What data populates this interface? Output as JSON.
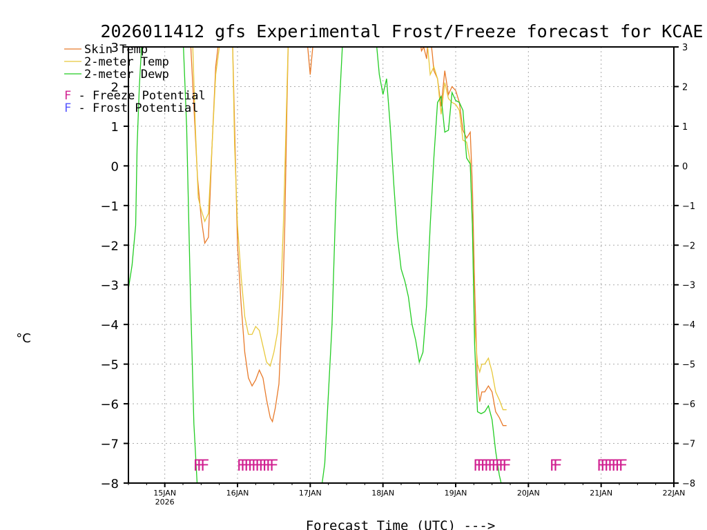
{
  "chart_data": {
    "type": "line",
    "title": "2026011412 gfs Experimental Frost/Freeze forecast for KCAE",
    "ylabel": "°C",
    "xlabel": "Forecast Time (UTC) --->",
    "ylim": [
      -8,
      3
    ],
    "xlim": [
      0,
      7.5
    ],
    "yticks": [
      -8,
      -7,
      -6,
      -5,
      -4,
      -3,
      -2,
      -1,
      0,
      1,
      2,
      3
    ],
    "yticklabels_left": [
      "−8",
      "−7",
      "−6",
      "−5",
      "−4",
      "−3",
      "−2",
      "−1",
      "0",
      "1",
      "2",
      "3"
    ],
    "yticklabels_right": [
      "−8",
      "−7",
      "−6",
      "−5",
      "−4",
      "−3",
      "−2",
      "−1",
      "0",
      "1",
      "2",
      "3"
    ],
    "xticks": [
      {
        "x": 0.5,
        "label": "15JAN",
        "sublabel": "2026"
      },
      {
        "x": 1.5,
        "label": "16JAN"
      },
      {
        "x": 2.5,
        "label": "17JAN"
      },
      {
        "x": 3.5,
        "label": "18JAN"
      },
      {
        "x": 4.5,
        "label": "19JAN"
      },
      {
        "x": 5.5,
        "label": "20JAN"
      },
      {
        "x": 6.5,
        "label": "21JAN"
      },
      {
        "x": 7.5,
        "label": "22JAN"
      }
    ],
    "grid": true,
    "legend": [
      {
        "label": "Skin Temp",
        "color": "#e87a2a"
      },
      {
        "label": "2-meter Temp",
        "color": "#e8c83a"
      },
      {
        "label": "2-meter Dewp",
        "color": "#22cc22"
      }
    ],
    "potential_legend": [
      {
        "marker": "F",
        "label": " - Freeze Potential",
        "color": "#d02090"
      },
      {
        "marker": "F",
        "label": " - Frost Potential",
        "color": "#5555ff"
      }
    ],
    "series": [
      {
        "name": "Skin Temp",
        "color": "#e87a2a",
        "points": [
          [
            0.85,
            3.3
          ],
          [
            0.9,
            1.5
          ],
          [
            0.95,
            -0.3
          ],
          [
            1.0,
            -1.3
          ],
          [
            1.05,
            -1.95
          ],
          [
            1.1,
            -1.8
          ],
          [
            1.15,
            0.5
          ],
          [
            1.2,
            2.5
          ],
          [
            1.25,
            3.3
          ],
          [
            1.43,
            3.3
          ],
          [
            1.46,
            1.0
          ],
          [
            1.5,
            -2.0
          ],
          [
            1.55,
            -3.5
          ],
          [
            1.6,
            -4.7
          ],
          [
            1.65,
            -5.35
          ],
          [
            1.7,
            -5.55
          ],
          [
            1.75,
            -5.4
          ],
          [
            1.8,
            -5.15
          ],
          [
            1.85,
            -5.35
          ],
          [
            1.9,
            -5.9
          ],
          [
            1.95,
            -6.35
          ],
          [
            1.98,
            -6.45
          ],
          [
            2.02,
            -6.1
          ],
          [
            2.07,
            -5.5
          ],
          [
            2.12,
            -3.5
          ],
          [
            2.15,
            -1.5
          ],
          [
            2.18,
            1.5
          ],
          [
            2.2,
            3.3
          ],
          [
            2.45,
            3.3
          ],
          [
            2.5,
            2.3
          ],
          [
            2.55,
            3.3
          ],
          [
            4.0,
            3.3
          ],
          [
            4.03,
            2.9
          ],
          [
            4.06,
            3.0
          ],
          [
            4.1,
            2.7
          ],
          [
            4.12,
            3.2
          ],
          [
            4.15,
            3.3
          ],
          [
            4.18,
            2.8
          ],
          [
            4.2,
            2.4
          ],
          [
            4.25,
            2.2
          ],
          [
            4.3,
            1.5
          ],
          [
            4.35,
            2.4
          ],
          [
            4.4,
            1.8
          ],
          [
            4.45,
            2.0
          ],
          [
            4.5,
            1.9
          ],
          [
            4.55,
            1.6
          ],
          [
            4.6,
            0.9
          ],
          [
            4.65,
            0.7
          ],
          [
            4.7,
            0.85
          ],
          [
            4.73,
            -0.5
          ],
          [
            4.76,
            -3.0
          ],
          [
            4.8,
            -5.5
          ],
          [
            4.83,
            -5.95
          ],
          [
            4.86,
            -5.7
          ],
          [
            4.9,
            -5.7
          ],
          [
            4.95,
            -5.55
          ],
          [
            5.0,
            -5.7
          ],
          [
            5.05,
            -6.2
          ],
          [
            5.1,
            -6.35
          ],
          [
            5.15,
            -6.55
          ],
          [
            5.2,
            -6.55
          ]
        ]
      },
      {
        "name": "2-meter Temp",
        "color": "#e8c83a",
        "points": [
          [
            0.88,
            3.3
          ],
          [
            0.92,
            1.0
          ],
          [
            0.96,
            -0.8
          ],
          [
            1.0,
            -1.1
          ],
          [
            1.05,
            -1.4
          ],
          [
            1.1,
            -1.2
          ],
          [
            1.15,
            0.5
          ],
          [
            1.2,
            2.3
          ],
          [
            1.25,
            3.0
          ],
          [
            1.3,
            3.3
          ],
          [
            1.43,
            3.3
          ],
          [
            1.46,
            0.5
          ],
          [
            1.5,
            -1.5
          ],
          [
            1.55,
            -2.8
          ],
          [
            1.6,
            -3.8
          ],
          [
            1.65,
            -4.25
          ],
          [
            1.7,
            -4.25
          ],
          [
            1.75,
            -4.05
          ],
          [
            1.8,
            -4.15
          ],
          [
            1.85,
            -4.55
          ],
          [
            1.9,
            -4.95
          ],
          [
            1.95,
            -5.05
          ],
          [
            2.0,
            -4.7
          ],
          [
            2.05,
            -4.2
          ],
          [
            2.1,
            -3.0
          ],
          [
            2.13,
            -1.5
          ],
          [
            2.16,
            0.5
          ],
          [
            2.2,
            3.3
          ],
          [
            4.1,
            3.3
          ],
          [
            4.15,
            2.3
          ],
          [
            4.2,
            2.5
          ],
          [
            4.25,
            2.2
          ],
          [
            4.3,
            1.3
          ],
          [
            4.35,
            2.1
          ],
          [
            4.4,
            1.7
          ],
          [
            4.45,
            1.6
          ],
          [
            4.5,
            1.55
          ],
          [
            4.55,
            1.4
          ],
          [
            4.6,
            0.65
          ],
          [
            4.65,
            0.6
          ],
          [
            4.7,
            0.1
          ],
          [
            4.73,
            -1.5
          ],
          [
            4.76,
            -4.0
          ],
          [
            4.8,
            -5.0
          ],
          [
            4.83,
            -5.2
          ],
          [
            4.86,
            -5.0
          ],
          [
            4.9,
            -5.0
          ],
          [
            4.95,
            -4.85
          ],
          [
            5.0,
            -5.2
          ],
          [
            5.05,
            -5.7
          ],
          [
            5.1,
            -5.9
          ],
          [
            5.15,
            -6.15
          ],
          [
            5.2,
            -6.15
          ]
        ]
      },
      {
        "name": "2-meter Dewp",
        "color": "#22cc22",
        "points": [
          [
            0.0,
            -3.1
          ],
          [
            0.05,
            -2.5
          ],
          [
            0.1,
            -1.5
          ],
          [
            0.12,
            0.5
          ],
          [
            0.15,
            2.0
          ],
          [
            0.18,
            3.0
          ],
          [
            0.2,
            3.3
          ],
          [
            0.75,
            3.3
          ],
          [
            0.8,
            1.0
          ],
          [
            0.85,
            -3.0
          ],
          [
            0.9,
            -6.5
          ],
          [
            0.95,
            -8.2
          ],
          [
            2.65,
            -8.2
          ],
          [
            2.7,
            -7.5
          ],
          [
            2.8,
            -4.0
          ],
          [
            2.85,
            -1.0
          ],
          [
            2.9,
            1.5
          ],
          [
            2.95,
            3.3
          ],
          [
            3.4,
            3.3
          ],
          [
            3.45,
            2.3
          ],
          [
            3.5,
            1.8
          ],
          [
            3.55,
            2.2
          ],
          [
            3.6,
            1.0
          ],
          [
            3.65,
            -0.5
          ],
          [
            3.7,
            -1.8
          ],
          [
            3.75,
            -2.6
          ],
          [
            3.8,
            -2.9
          ],
          [
            3.85,
            -3.3
          ],
          [
            3.9,
            -4.0
          ],
          [
            3.95,
            -4.4
          ],
          [
            4.0,
            -4.95
          ],
          [
            4.05,
            -4.7
          ],
          [
            4.1,
            -3.5
          ],
          [
            4.15,
            -1.5
          ],
          [
            4.2,
            0.2
          ],
          [
            4.25,
            1.6
          ],
          [
            4.3,
            1.75
          ],
          [
            4.35,
            0.85
          ],
          [
            4.4,
            0.9
          ],
          [
            4.45,
            1.85
          ],
          [
            4.5,
            1.65
          ],
          [
            4.55,
            1.6
          ],
          [
            4.6,
            1.4
          ],
          [
            4.65,
            0.2
          ],
          [
            4.7,
            0.05
          ],
          [
            4.73,
            -1.5
          ],
          [
            4.76,
            -4.5
          ],
          [
            4.8,
            -6.2
          ],
          [
            4.85,
            -6.25
          ],
          [
            4.9,
            -6.2
          ],
          [
            4.95,
            -6.05
          ],
          [
            5.0,
            -6.4
          ],
          [
            5.05,
            -7.2
          ],
          [
            5.1,
            -7.8
          ],
          [
            5.15,
            -8.2
          ]
        ]
      }
    ],
    "freeze_markers": {
      "label": "F",
      "color": "#d02090",
      "y": -7.55,
      "x": [
        0.95,
        1.0,
        1.05,
        1.55,
        1.6,
        1.65,
        1.7,
        1.75,
        1.8,
        1.85,
        1.9,
        1.95,
        2.0,
        4.8,
        4.85,
        4.9,
        4.95,
        5.0,
        5.05,
        5.1,
        5.15,
        5.2,
        5.85,
        5.9,
        6.5,
        6.55,
        6.6,
        6.65,
        6.7,
        6.75,
        6.8
      ]
    }
  }
}
